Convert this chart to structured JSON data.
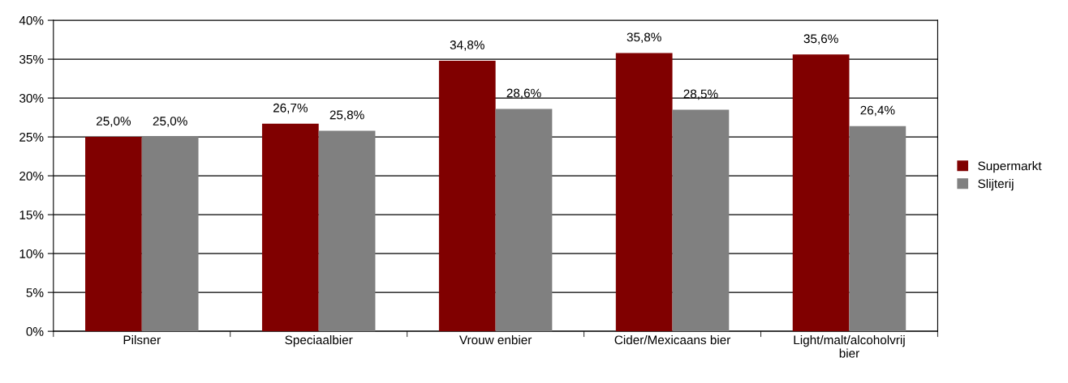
{
  "chart_data": {
    "type": "bar",
    "categories": [
      "Pilsner",
      "Speciaalbier",
      "Vrouw enbier",
      "Cider/Mexicaans bier",
      "Light/malt/alcoholvrij\nbier"
    ],
    "series": [
      {
        "name": "Supermarkt",
        "color": "#800000",
        "values": [
          25.0,
          26.7,
          34.8,
          35.8,
          35.6
        ],
        "value_labels": [
          "25,0%",
          "26,7%",
          "34,8%",
          "35,8%",
          "35,6%"
        ]
      },
      {
        "name": "Slijterij",
        "color": "#808080",
        "values": [
          25.0,
          25.8,
          28.6,
          28.5,
          26.4
        ],
        "value_labels": [
          "25,0%",
          "25,8%",
          "28,6%",
          "28,5%",
          "26,4%"
        ]
      }
    ],
    "ylim": [
      0,
      40
    ],
    "yticks": [
      {
        "value": 0,
        "label": "0%"
      },
      {
        "value": 5,
        "label": "5%"
      },
      {
        "value": 10,
        "label": "10%"
      },
      {
        "value": 15,
        "label": "15%"
      },
      {
        "value": 20,
        "label": "20%"
      },
      {
        "value": 25,
        "label": "25%"
      },
      {
        "value": 30,
        "label": "30%"
      },
      {
        "value": 35,
        "label": "35%"
      },
      {
        "value": 40,
        "label": "40%"
      }
    ],
    "grid": "y",
    "legend": "right"
  }
}
